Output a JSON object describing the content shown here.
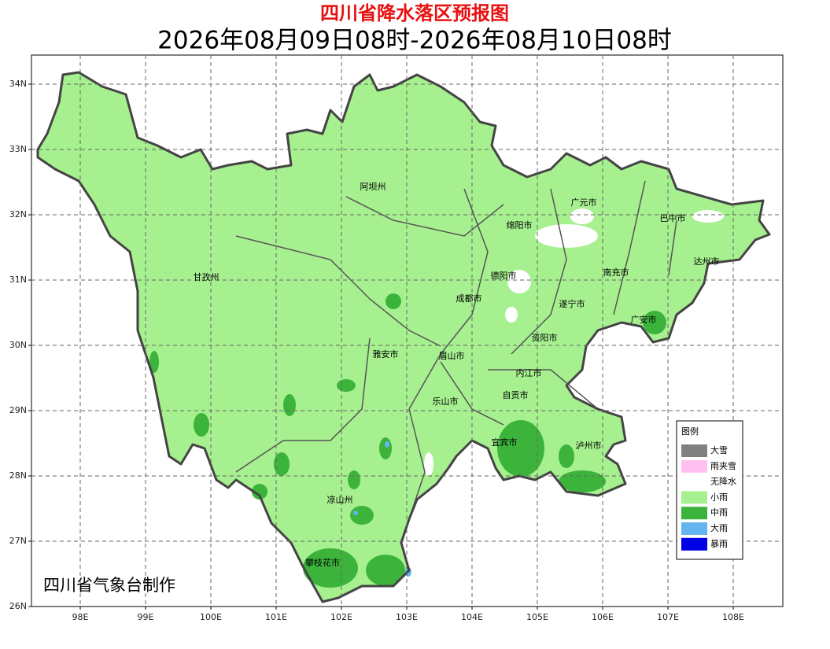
{
  "title": "四川省降水落区预报图",
  "subtitle": "2026年08月09日08时-2026年08月10日08时",
  "credit": "四川省气象台制作",
  "lat_ticks": [
    {
      "value": 26,
      "label": "26N"
    },
    {
      "value": 27,
      "label": "27N"
    },
    {
      "value": 28,
      "label": "28N"
    },
    {
      "value": 29,
      "label": "29N"
    },
    {
      "value": 30,
      "label": "30N"
    },
    {
      "value": 31,
      "label": "31N"
    },
    {
      "value": 32,
      "label": "32N"
    },
    {
      "value": 33,
      "label": "33N"
    },
    {
      "value": 34,
      "label": "34N"
    }
  ],
  "lon_ticks": [
    {
      "value": 98,
      "label": "98E"
    },
    {
      "value": 99,
      "label": "99E"
    },
    {
      "value": 100,
      "label": "100E"
    },
    {
      "value": 101,
      "label": "101E"
    },
    {
      "value": 102,
      "label": "102E"
    },
    {
      "value": 103,
      "label": "103E"
    },
    {
      "value": 104,
      "label": "104E"
    },
    {
      "value": 105,
      "label": "105E"
    },
    {
      "value": 106,
      "label": "106E"
    },
    {
      "value": 107,
      "label": "107E"
    },
    {
      "value": 108,
      "label": "108E"
    }
  ],
  "cities": [
    "阿坝州",
    "广元市",
    "巴中市",
    "绵阳市",
    "达州市",
    "甘孜州",
    "德阳市",
    "南充市",
    "成都市",
    "遂宁市",
    "广安市",
    "资阳市",
    "雅安市",
    "眉山市",
    "内江市",
    "自贡市",
    "乐山市",
    "宜宾市",
    "泸州市",
    "凉山州",
    "攀枝花市"
  ],
  "legend": {
    "title": "图例",
    "items": [
      {
        "name": "大雪",
        "color": "#808080"
      },
      {
        "name": "雨夹雪",
        "color": "#ffc0f0"
      },
      {
        "name": "无降水",
        "color": "#ffffff"
      },
      {
        "name": "小雨",
        "color": "#a6f08f"
      },
      {
        "name": "中雨",
        "color": "#3cb43c"
      },
      {
        "name": "大雨",
        "color": "#64b4f0"
      },
      {
        "name": "暴雨",
        "color": "#0000e6"
      }
    ]
  }
}
